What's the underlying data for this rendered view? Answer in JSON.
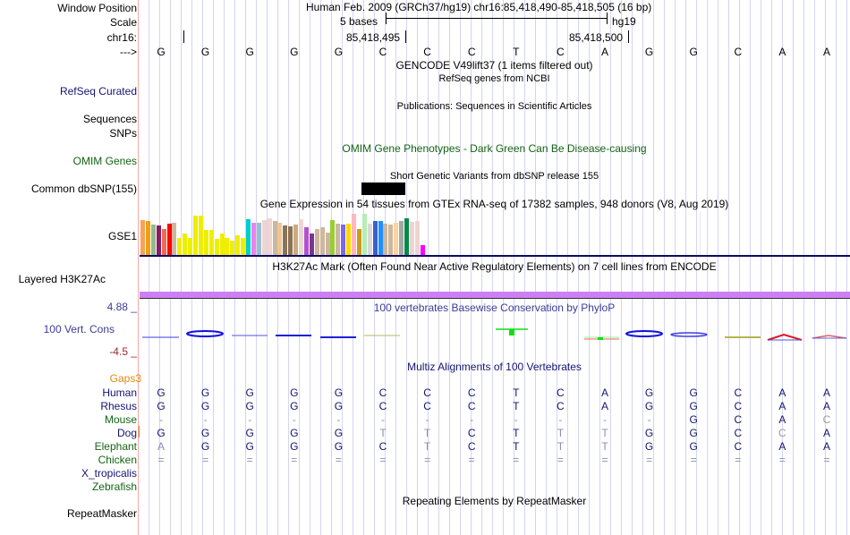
{
  "header": {
    "window_position_label": "Window Position",
    "scale_label": "Scale",
    "chrom_label": "chr16:",
    "strand_label": "--->",
    "assembly_position": "Human Feb. 2009 (GRCh37/hg19)   chr16:85,418,490-85,418,505 (16 bp)",
    "scale_text": "5 bases",
    "scale_db": "hg19",
    "coord_ticks": [
      "85,418,495",
      "85,418,500"
    ]
  },
  "sequence": [
    "G",
    "G",
    "G",
    "G",
    "G",
    "C",
    "C",
    "C",
    "T",
    "C",
    "A",
    "G",
    "G",
    "C",
    "A",
    "A"
  ],
  "tracks": {
    "gencode_title": "GENCODE V49lift37 (1 items filtered out)",
    "refseq_title": "RefSeq genes from NCBI",
    "refseq_label": "RefSeq Curated",
    "publications_title": "Publications: Sequences in Scientific Articles",
    "sequences_label": "Sequences",
    "snps_label": "SNPs",
    "omim_title": "OMIM Gene Phenotypes - Dark Green Can Be Disease-causing",
    "omim_label": "OMIM Genes",
    "dbsnp_title": "Short Genetic Variants from dbSNP release 155",
    "dbsnp_label": "Common dbSNP(155)",
    "gtex_title": "Gene Expression in 54 tissues from GTEx RNA-seq of 17382 samples, 948 donors (V8, Aug 2019)",
    "gtex_label": "GSE1",
    "h3k27ac_title": "H3K27Ac Mark (Often Found Near Active Regulatory Elements) on 7 cell lines from ENCODE",
    "h3k27ac_label": "Layered H3K27Ac",
    "phylop_title": "100 vertebrates Basewise Conservation by PhyloP",
    "phylop_label": "100 Vert. Cons",
    "phylop_max": "4.88 _",
    "phylop_min": "-4.5 _",
    "multiz_title": "Multiz Alignments of 100 Vertebrates",
    "gaps_label": "Gaps3",
    "repeatmasker_title": "Repeating Elements by RepeatMasker",
    "repeatmasker_label": "RepeatMasker"
  },
  "gtex_bars": [
    {
      "v": 0.85,
      "c": "#f6a35a"
    },
    {
      "v": 0.82,
      "c": "#f0a010"
    },
    {
      "v": 0.74,
      "c": "#8fbc8f"
    },
    {
      "v": 0.72,
      "c": "#8b1c62"
    },
    {
      "v": 0.64,
      "c": "#ee6a50"
    },
    {
      "v": 0.76,
      "c": "#ff0000"
    },
    {
      "v": 0.79,
      "c": "#cdb79e"
    },
    {
      "v": 0.42,
      "c": "#eeee00"
    },
    {
      "v": 0.53,
      "c": "#eeee00"
    },
    {
      "v": 0.42,
      "c": "#eeee00"
    },
    {
      "v": 0.96,
      "c": "#eeee00"
    },
    {
      "v": 0.96,
      "c": "#eeee00"
    },
    {
      "v": 0.62,
      "c": "#eeee00"
    },
    {
      "v": 0.62,
      "c": "#eeee00"
    },
    {
      "v": 0.4,
      "c": "#eeee00"
    },
    {
      "v": 0.53,
      "c": "#eeee00"
    },
    {
      "v": 0.42,
      "c": "#eeee00"
    },
    {
      "v": 0.36,
      "c": "#eeee00"
    },
    {
      "v": 0.49,
      "c": "#eeee00"
    },
    {
      "v": 0.42,
      "c": "#eeee00"
    },
    {
      "v": 0.87,
      "c": "#00cdcd"
    },
    {
      "v": 0.79,
      "c": "#ee82ee"
    },
    {
      "v": 0.79,
      "c": "#9ac0cd"
    },
    {
      "v": 0.85,
      "c": "#eed5d2"
    },
    {
      "v": 0.89,
      "c": "#eed5d2"
    },
    {
      "v": 0.83,
      "c": "#cdb79e"
    },
    {
      "v": 0.79,
      "c": "#eec591"
    },
    {
      "v": 0.72,
      "c": "#8b7355"
    },
    {
      "v": 0.7,
      "c": "#8b7355"
    },
    {
      "v": 0.74,
      "c": "#cdaa7d"
    },
    {
      "v": 0.87,
      "c": "#eed5d2"
    },
    {
      "v": 0.68,
      "c": "#b452cd"
    },
    {
      "v": 0.53,
      "c": "#7a378b"
    },
    {
      "v": 0.64,
      "c": "#cdb79e"
    },
    {
      "v": 0.68,
      "c": "#cdb79e"
    },
    {
      "v": 0.55,
      "c": "#cdb79e"
    },
    {
      "v": 0.85,
      "c": "#9acd32"
    },
    {
      "v": 0.76,
      "c": "#cdb79e"
    },
    {
      "v": 0.74,
      "c": "#7b68ee"
    },
    {
      "v": 0.76,
      "c": "#ffd700"
    },
    {
      "v": 1.0,
      "c": "#ffb6c1"
    },
    {
      "v": 0.64,
      "c": "#cd9b1d"
    },
    {
      "v": 1.0,
      "c": "#b4eeb4"
    },
    {
      "v": 0.76,
      "c": "#d9d9d9"
    },
    {
      "v": 0.83,
      "c": "#3a5fcd"
    },
    {
      "v": 0.83,
      "c": "#1e90ff"
    },
    {
      "v": 0.76,
      "c": "#cdb79e"
    },
    {
      "v": 0.74,
      "c": "#cdb79e"
    },
    {
      "v": 0.79,
      "c": "#ffd39b"
    },
    {
      "v": 0.83,
      "c": "#a6a6a6"
    },
    {
      "v": 0.89,
      "c": "#008b45"
    },
    {
      "v": 0.81,
      "c": "#eed5d2"
    },
    {
      "v": 0.83,
      "c": "#eed5d2"
    },
    {
      "v": 0.26,
      "c": "#ff00ff"
    }
  ],
  "alignment": {
    "species": [
      {
        "name": "Human",
        "color": "navy",
        "bases": [
          "G",
          "G",
          "G",
          "G",
          "G",
          "C",
          "C",
          "C",
          "T",
          "C",
          "A",
          "G",
          "G",
          "C",
          "A",
          "A"
        ],
        "dim": []
      },
      {
        "name": "Rhesus",
        "color": "navy",
        "bases": [
          "G",
          "G",
          "G",
          "G",
          "G",
          "C",
          "C",
          "C",
          "T",
          "C",
          "A",
          "G",
          "G",
          "C",
          "A",
          "A"
        ],
        "dim": []
      },
      {
        "name": "Mouse",
        "color": "green",
        "bases": [
          "-",
          "-",
          "-",
          "-",
          "-",
          "-",
          "-",
          "-",
          "-",
          "-",
          "-",
          "-",
          "G",
          "C",
          "A",
          "C"
        ],
        "dim": [
          0,
          1,
          2,
          3,
          4,
          5,
          6,
          7,
          8,
          9,
          10,
          11,
          15
        ]
      },
      {
        "name": "Dog",
        "color": "navy",
        "bases": [
          "G",
          "G",
          "G",
          "G",
          "G",
          "T",
          "T",
          "C",
          "T",
          "T",
          "T",
          "G",
          "G",
          "C",
          "C",
          "A"
        ],
        "dim": [
          5,
          6,
          9,
          10,
          14
        ]
      },
      {
        "name": "Elephant",
        "color": "green",
        "bases": [
          "A",
          "G",
          "G",
          "G",
          "G",
          "C",
          "T",
          "C",
          "T",
          "T",
          "T",
          "G",
          "G",
          "C",
          "A",
          "A"
        ],
        "dim": [
          0,
          6,
          9,
          10
        ]
      },
      {
        "name": "Chicken",
        "color": "green",
        "bases": [
          "=",
          "=",
          "=",
          "=",
          "=",
          "=",
          "=",
          "=",
          "=",
          "=",
          "=",
          "=",
          "=",
          "=",
          "=",
          "="
        ],
        "dim": [
          0,
          1,
          2,
          3,
          4,
          5,
          6,
          7,
          8,
          9,
          10,
          11,
          12,
          13,
          14,
          15
        ]
      },
      {
        "name": "X_tropicalis",
        "color": "navy",
        "bases": [],
        "dim": []
      },
      {
        "name": "Zebrafish",
        "color": "green",
        "bases": [],
        "dim": []
      }
    ]
  }
}
